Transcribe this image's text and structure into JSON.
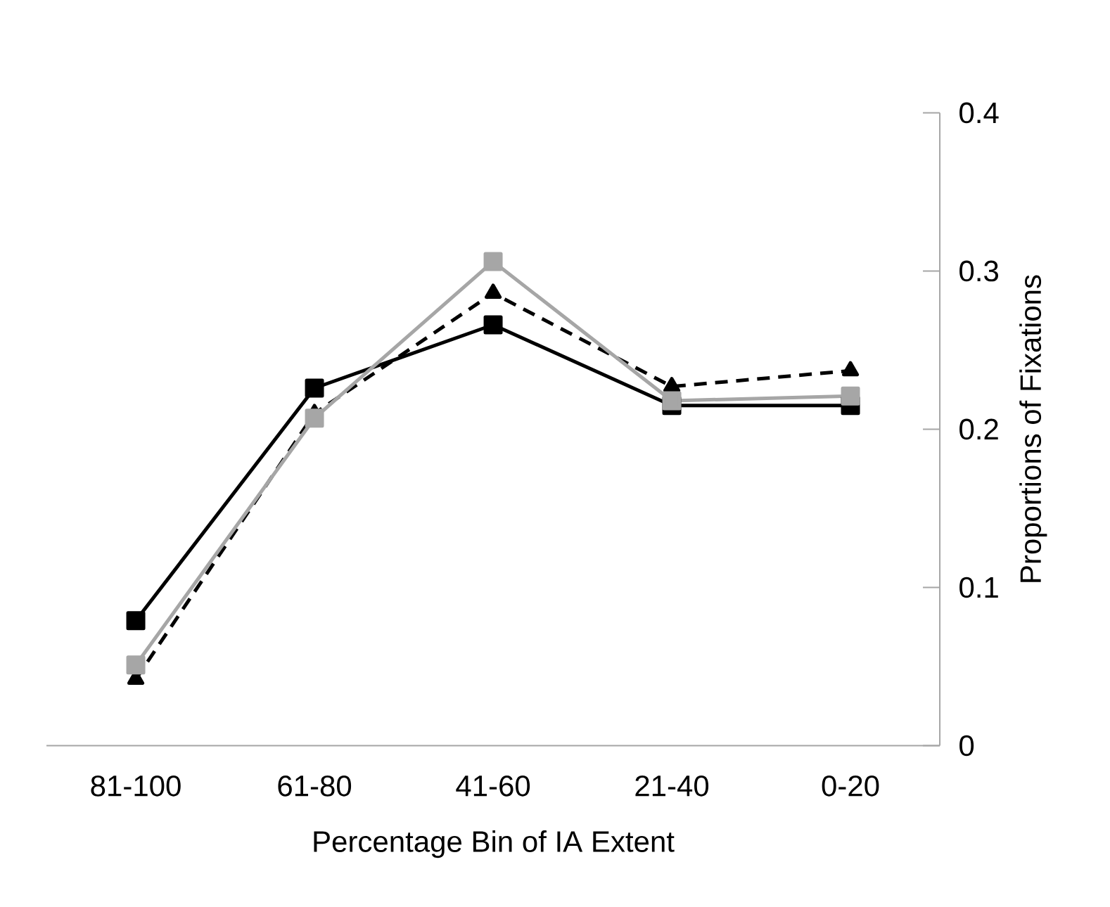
{
  "chart_data": {
    "type": "line",
    "xlabel": "Percentage Bin of IA Extent",
    "ylabel": "Proportions of Fixations",
    "categories": [
      "81-100",
      "61-80",
      "41-60",
      "21-40",
      "0-20"
    ],
    "series": [
      {
        "color": "#000000",
        "marker": "square",
        "line_style": "solid",
        "values": [
          0.079,
          0.226,
          0.266,
          0.215,
          0.215
        ]
      },
      {
        "color": "#000000",
        "marker": "triangle",
        "line_style": "dashed",
        "values": [
          0.042,
          0.21,
          0.286,
          0.227,
          0.237
        ]
      },
      {
        "color": "#a6a6a6",
        "marker": "square",
        "line_style": "solid",
        "values": [
          0.051,
          0.207,
          0.306,
          0.218,
          0.221
        ]
      }
    ],
    "ylim": [
      0,
      0.4
    ],
    "yticks": [
      0,
      0.1,
      0.2,
      0.3,
      0.4
    ]
  }
}
